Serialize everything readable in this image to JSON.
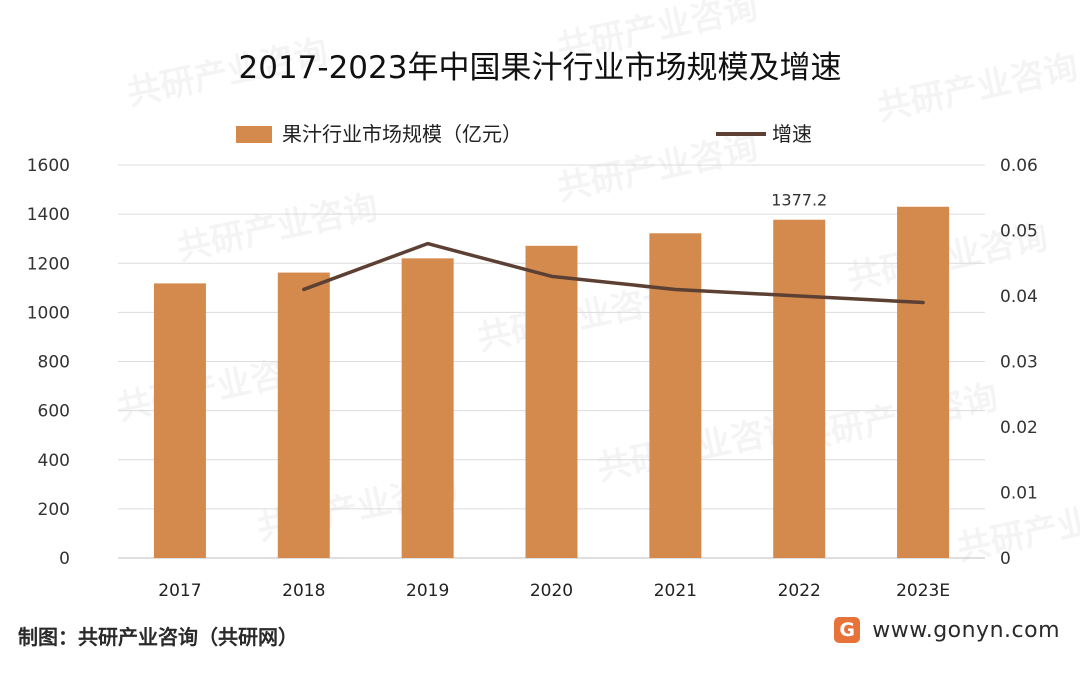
{
  "chart_data": {
    "type": "bar",
    "title": "2017-2023年中国果汁行业市场规模及增速",
    "categories": [
      "2017",
      "2018",
      "2019",
      "2020",
      "2021",
      "2022",
      "2023E"
    ],
    "series": [
      {
        "name": "果汁行业市场规模（亿元）",
        "type": "bar",
        "axis": "left",
        "color": "#D48A4D",
        "values": [
          1118,
          1162,
          1220,
          1271,
          1322,
          1377.2,
          1430
        ]
      },
      {
        "name": "增速",
        "type": "line",
        "axis": "right",
        "color": "#5C4033",
        "values": [
          null,
          0.041,
          0.048,
          0.043,
          0.041,
          0.04,
          0.039
        ]
      }
    ],
    "data_labels": [
      {
        "category": "2022",
        "series": "果汁行业市场规模（亿元）",
        "text": "1377.2"
      }
    ],
    "y_left": {
      "range": [
        0,
        1600
      ],
      "ticks": [
        "0",
        "200",
        "400",
        "600",
        "800",
        "1000",
        "1200",
        "1400",
        "1600"
      ]
    },
    "y_right": {
      "range": [
        0,
        0.06
      ],
      "ticks": [
        "0",
        "0.01",
        "0.02",
        "0.03",
        "0.04",
        "0.05",
        "0.06"
      ]
    },
    "grid": "horizontal",
    "legend_position": "top"
  },
  "footer": {
    "source": "制图：共研产业咨询（共研网）",
    "logo_letter": "G",
    "url": "www.gonyn.com"
  },
  "watermark": {
    "text": "共研产业咨询"
  }
}
